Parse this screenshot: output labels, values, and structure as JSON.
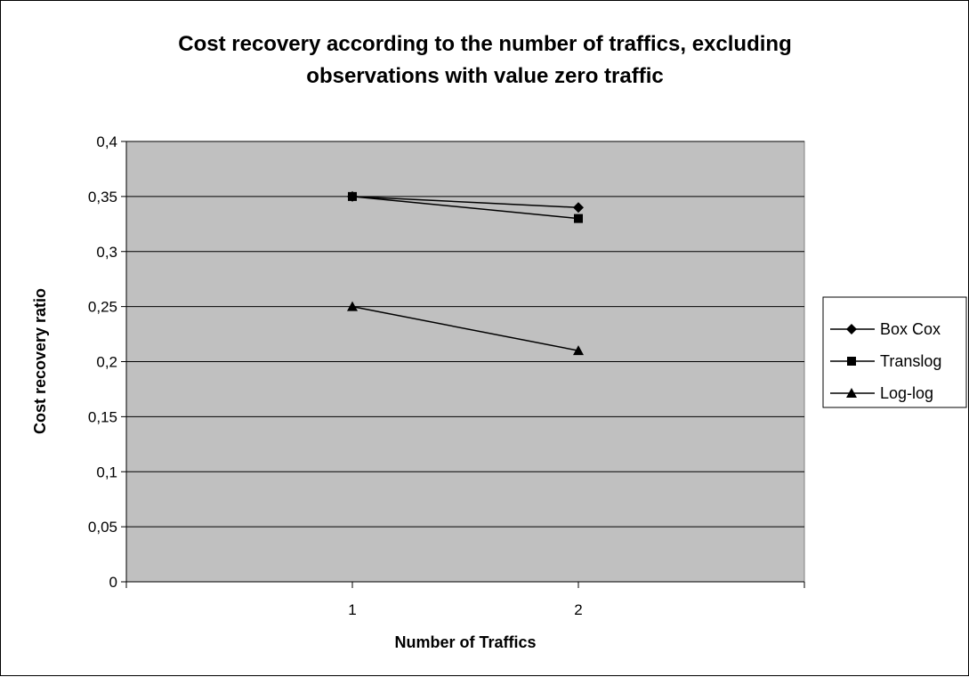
{
  "chart_data": {
    "type": "line",
    "title_line1": "Cost recovery according to the number of traffics, excluding",
    "title_line2": "observations with value zero traffic",
    "xlabel": "Number of Traffics",
    "ylabel": "Cost recovery ratio",
    "categories": [
      "1",
      "2"
    ],
    "ylim": [
      0,
      0.4
    ],
    "yticks": [
      0,
      0.05,
      0.1,
      0.15,
      0.2,
      0.25,
      0.3,
      0.35,
      0.4
    ],
    "ytick_labels": [
      "0",
      "0,05",
      "0,1",
      "0,15",
      "0,2",
      "0,25",
      "0,3",
      "0,35",
      "0,4"
    ],
    "grid": true,
    "legend_position": "right",
    "plot_background": "#c0c0c0",
    "series": [
      {
        "name": "Box Cox",
        "marker": "diamond",
        "values": [
          0.35,
          0.34
        ]
      },
      {
        "name": "Translog",
        "marker": "square",
        "values": [
          0.35,
          0.33
        ]
      },
      {
        "name": "Log-log",
        "marker": "triangle",
        "values": [
          0.25,
          0.21
        ]
      }
    ]
  }
}
